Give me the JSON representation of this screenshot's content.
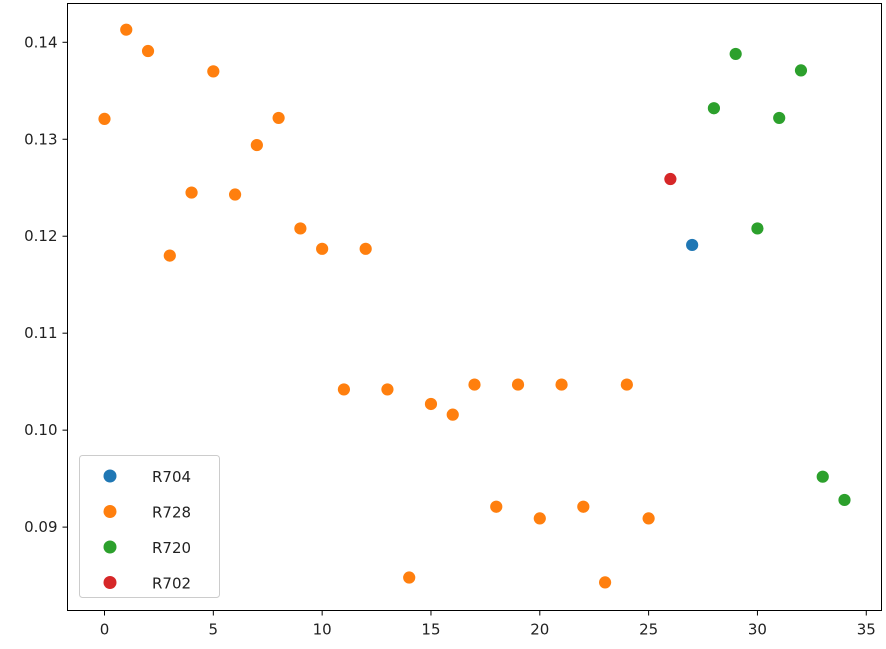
{
  "chart_data": {
    "type": "scatter",
    "title": "",
    "xlabel": "",
    "ylabel": "",
    "xlim": [
      -1.7,
      35.7
    ],
    "ylim": [
      0.0814,
      0.144
    ],
    "xticks": [
      0,
      5,
      10,
      15,
      20,
      25,
      30,
      35
    ],
    "xtick_labels": [
      "0",
      "5",
      "10",
      "15",
      "20",
      "25",
      "30",
      "35"
    ],
    "yticks": [
      0.09,
      0.1,
      0.11,
      0.12,
      0.13,
      0.14
    ],
    "ytick_labels": [
      "0.09",
      "0.10",
      "0.11",
      "0.12",
      "0.13",
      "0.14"
    ],
    "grid": false,
    "legend_placement": "lower-left",
    "series": [
      {
        "name": "R704",
        "color": "#1f77b4",
        "x": [
          27
        ],
        "y": [
          0.1191
        ]
      },
      {
        "name": "R728",
        "color": "#ff7f0e",
        "x": [
          0,
          1,
          2,
          3,
          4,
          5,
          6,
          7,
          8,
          9,
          10,
          11,
          12,
          13,
          14,
          15,
          16,
          17,
          18,
          19,
          20,
          21,
          22,
          23,
          24,
          25
        ],
        "y": [
          0.1321,
          0.1413,
          0.1391,
          0.118,
          0.1245,
          0.137,
          0.1243,
          0.1294,
          0.1322,
          0.1208,
          0.1187,
          0.1042,
          0.1187,
          0.1042,
          0.0848,
          0.1027,
          0.1016,
          0.1047,
          0.0921,
          0.1047,
          0.0909,
          0.1047,
          0.0921,
          0.0843,
          0.1047,
          0.0909
        ]
      },
      {
        "name": "R720",
        "color": "#2ca02c",
        "x": [
          28,
          29,
          30,
          31,
          32,
          33,
          34
        ],
        "y": [
          0.1332,
          0.1388,
          0.1208,
          0.1322,
          0.1371,
          0.0952,
          0.0928
        ]
      },
      {
        "name": "R702",
        "color": "#d62728",
        "x": [
          26
        ],
        "y": [
          0.1259
        ]
      }
    ]
  }
}
